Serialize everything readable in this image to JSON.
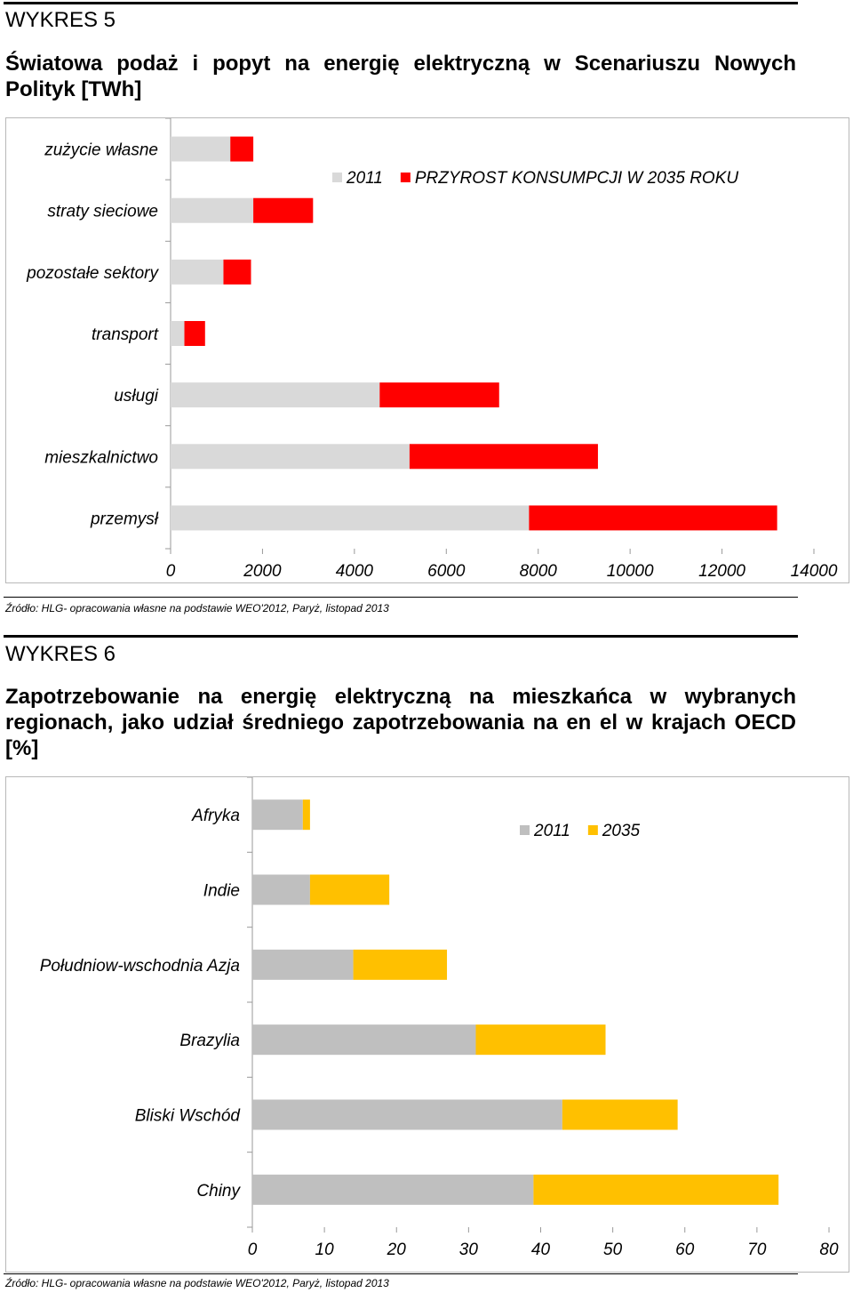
{
  "charts": [
    {
      "number_label": "WYKRES 5",
      "title": "Światowa podaż i popyt na energię elektryczną w Scenariuszu Nowych Polityk [TWh]",
      "source": "Źródło: HLG- opracowania własne na podstawie WEO'2012, Paryż, listopad 2013"
    },
    {
      "number_label": "WYKRES 6",
      "title": "Zapotrzebowanie na energię elektryczną na mieszkańca w wybranych regionach, jako udział średniego zapotrzebowania na en el w krajach OECD [%]",
      "source": "Źródło: HLG- opracowania własne na podstawie WEO'2012, Paryż, listopad 2013"
    }
  ],
  "chart_data": [
    {
      "type": "bar",
      "orientation": "horizontal",
      "stacked": true,
      "categories": [
        "zużycie własne",
        "straty sieciowe",
        "pozostałe sektory",
        "transport",
        "usługi",
        "mieszkalnictwo",
        "przemysł"
      ],
      "series": [
        {
          "name": "2011",
          "color": "#d9d9d9",
          "values": [
            1300,
            1800,
            1150,
            300,
            4550,
            5200,
            7800
          ]
        },
        {
          "name": "PRZYROST KONSUMPCJI W 2035 ROKU",
          "color": "#ff0000",
          "values": [
            500,
            1300,
            600,
            450,
            2600,
            4100,
            5400
          ]
        }
      ],
      "xlim": [
        0,
        14000
      ],
      "xticks": [
        "0",
        "2000",
        "4000",
        "6000",
        "8000",
        "10000",
        "12000",
        "14000"
      ],
      "legend_position": "top-right"
    },
    {
      "type": "bar",
      "orientation": "horizontal",
      "stacked": true,
      "categories": [
        "Afryka",
        "Indie",
        "Południow-wschodnia Azja",
        "Brazylia",
        "Bliski Wschód",
        "Chiny"
      ],
      "series": [
        {
          "name": "2011",
          "color": "#bfbfbf",
          "values": [
            7,
            8,
            14,
            31,
            43,
            39
          ]
        },
        {
          "name": "2035",
          "color": "#ffc000",
          "values": [
            1,
            11,
            13,
            18,
            16,
            34
          ]
        }
      ],
      "xlim": [
        0,
        80
      ],
      "xticks": [
        "0",
        "10",
        "20",
        "30",
        "40",
        "50",
        "60",
        "70",
        "80"
      ],
      "legend_position": "top-right"
    }
  ]
}
